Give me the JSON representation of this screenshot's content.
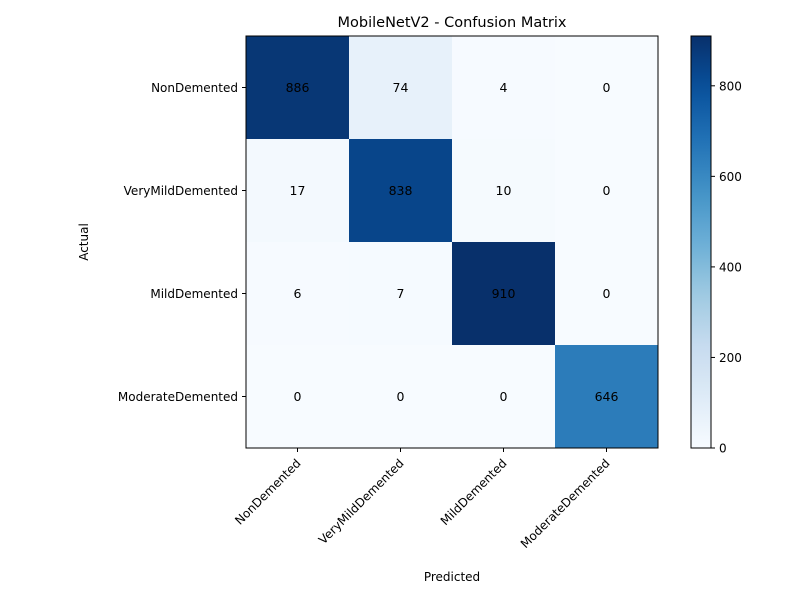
{
  "chart_data": {
    "type": "heatmap",
    "title": "MobileNetV2 - Confusion Matrix",
    "xlabel": "Predicted",
    "ylabel": "Actual",
    "row_labels": [
      "NonDemented",
      "VeryMildDemented",
      "MildDemented",
      "ModerateDemented"
    ],
    "col_labels": [
      "NonDemented",
      "VeryMildDemented",
      "MildDemented",
      "ModerateDemented"
    ],
    "values": [
      [
        886,
        74,
        4,
        0
      ],
      [
        17,
        838,
        10,
        0
      ],
      [
        6,
        7,
        910,
        0
      ],
      [
        0,
        0,
        0,
        646
      ]
    ],
    "colormap": "Blues",
    "vmin": 0,
    "vmax": 910,
    "colorbar_ticks": [
      0,
      200,
      400,
      600,
      800
    ]
  }
}
